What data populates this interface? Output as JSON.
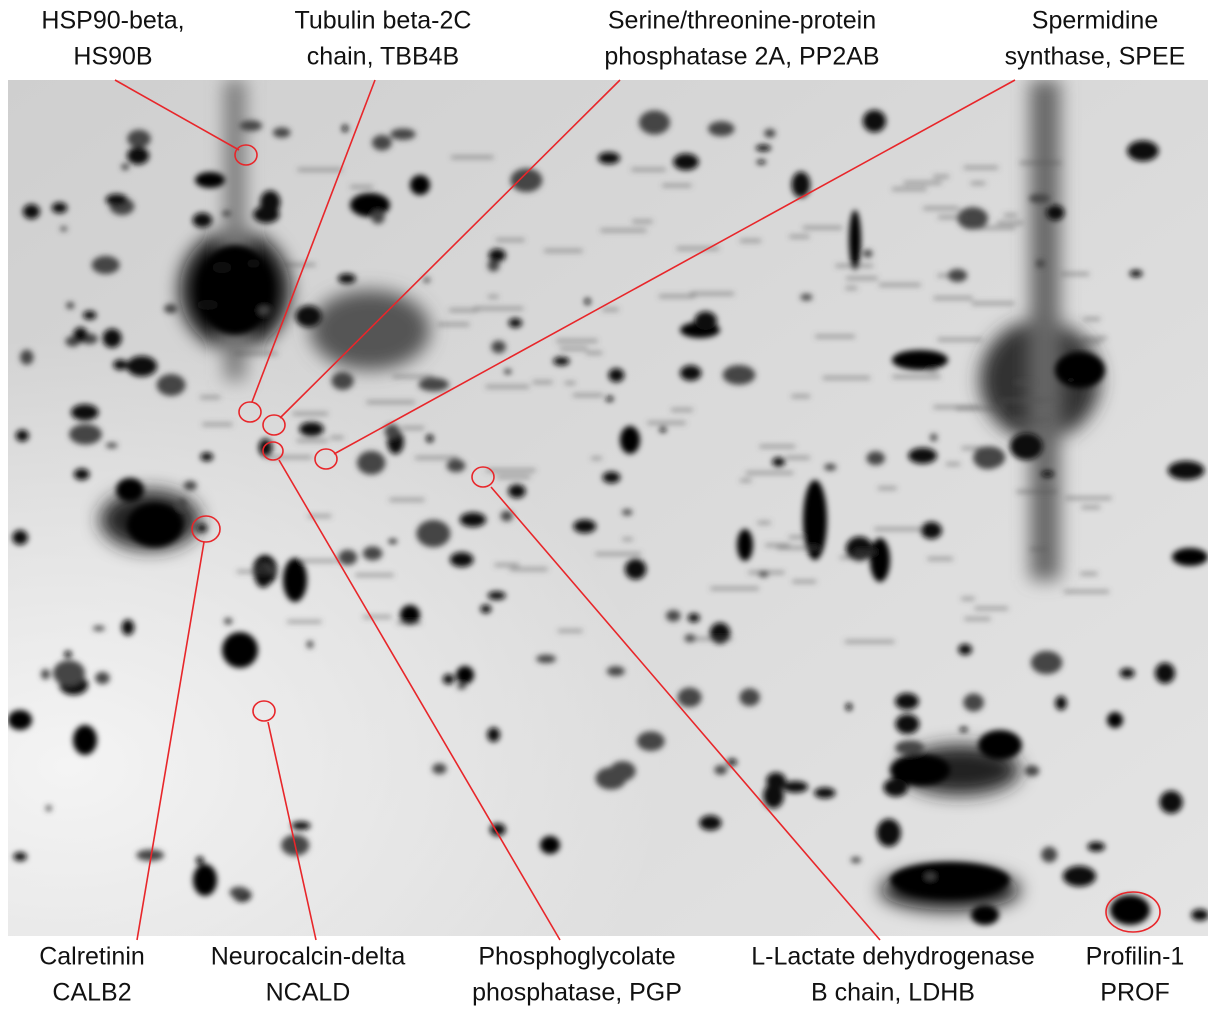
{
  "labels": [
    {
      "lines": [
        "HSP90-beta,",
        "HS90B"
      ]
    },
    {
      "lines": [
        "Tubulin beta-2C",
        "chain, TBB4B"
      ]
    },
    {
      "lines": [
        "Serine/threonine-protein",
        "phosphatase 2A, PP2AB"
      ]
    },
    {
      "lines": [
        "Spermidine",
        "synthase, SPEE"
      ]
    },
    {
      "lines": [
        "Calretinin",
        "CALB2"
      ]
    },
    {
      "lines": [
        "Neurocalcin-delta",
        "NCALD"
      ]
    },
    {
      "lines": [
        "Phosphoglycolate",
        "phosphatase, PGP"
      ]
    },
    {
      "lines": [
        "L-Lactate dehydrogenase",
        "B chain, LDHB"
      ]
    },
    {
      "lines": [
        "Profilin-1",
        "PROF"
      ]
    }
  ]
}
